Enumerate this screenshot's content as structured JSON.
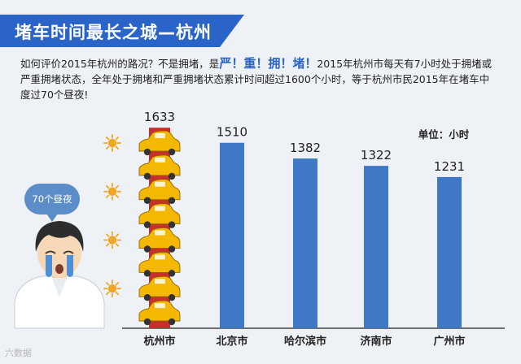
{
  "header": {
    "title": "堵车时间最长之城—杭州"
  },
  "intro": {
    "part1": "如何评价2015年杭州的路况？不是拥堵，是",
    "emphasis": "严！重！拥！堵！",
    "part2": "2015年杭州市每天有7小时处于拥堵或严重拥堵状态，全年处于拥堵和严重拥堵状态累计时间超过1600个小时，等于杭州市民2015年在堵车中度过70个昼夜!"
  },
  "speech_bubble": "70个昼夜",
  "watermark": "六数据",
  "colors": {
    "banner": "#2a64c8",
    "bar": "#3f79c6",
    "hangzhou_stripe": "#c9302c",
    "taxi": "#f5b800",
    "sun": "#f2a623",
    "bubble": "#5b8ec9"
  },
  "icons": [
    "sun-icon",
    "moon-icon",
    "taxi-icon",
    "crying-man-illustration"
  ],
  "chart_data": {
    "type": "bar",
    "categories": [
      "杭州市",
      "北京市",
      "哈尔滨市",
      "济南市",
      "广州市"
    ],
    "values": [
      1633,
      1510,
      1382,
      1322,
      1231
    ],
    "unit_label": "单位：小时",
    "ylim": [
      0,
      1700
    ],
    "grid": false,
    "highlight_category": "杭州市"
  }
}
